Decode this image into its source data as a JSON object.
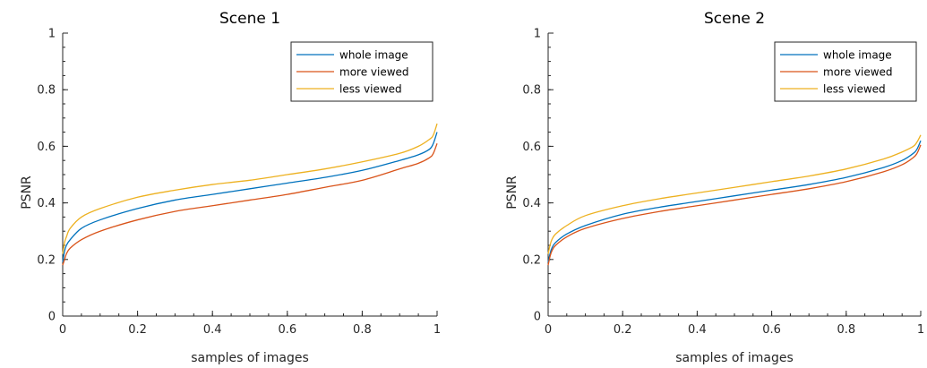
{
  "chart_data": [
    {
      "type": "line",
      "title": "Scene 1",
      "xlabel": "samples of images",
      "ylabel": "PSNR",
      "xlim": [
        0,
        1
      ],
      "ylim": [
        0,
        1
      ],
      "xticks": [
        "0",
        "0.2",
        "0.4",
        "0.6",
        "0.8",
        "1"
      ],
      "yticks": [
        "0",
        "0.2",
        "0.4",
        "0.6",
        "0.8",
        "1"
      ],
      "grid": false,
      "legend_position": "top-right",
      "x": [
        0,
        0.005,
        0.01,
        0.02,
        0.05,
        0.1,
        0.2,
        0.3,
        0.4,
        0.5,
        0.6,
        0.7,
        0.8,
        0.9,
        0.95,
        0.98,
        0.99,
        1.0
      ],
      "series": [
        {
          "name": "whole image",
          "color": "#0072BD",
          "values": [
            0.19,
            0.23,
            0.25,
            0.27,
            0.31,
            0.34,
            0.38,
            0.41,
            0.43,
            0.45,
            0.47,
            0.49,
            0.515,
            0.55,
            0.57,
            0.59,
            0.61,
            0.65
          ]
        },
        {
          "name": "more viewed",
          "color": "#D95319",
          "values": [
            0.18,
            0.2,
            0.22,
            0.24,
            0.27,
            0.3,
            0.34,
            0.37,
            0.39,
            0.41,
            0.43,
            0.455,
            0.48,
            0.52,
            0.54,
            0.56,
            0.575,
            0.61
          ]
        },
        {
          "name": "less viewed",
          "color": "#EDB120",
          "values": [
            0.22,
            0.26,
            0.28,
            0.31,
            0.35,
            0.38,
            0.42,
            0.445,
            0.465,
            0.48,
            0.5,
            0.52,
            0.545,
            0.575,
            0.6,
            0.625,
            0.64,
            0.68
          ]
        }
      ]
    },
    {
      "type": "line",
      "title": "Scene 2",
      "xlabel": "samples of images",
      "ylabel": "PSNR",
      "xlim": [
        0,
        1
      ],
      "ylim": [
        0,
        1
      ],
      "xticks": [
        "0",
        "0.2",
        "0.4",
        "0.6",
        "0.8",
        "1"
      ],
      "yticks": [
        "0",
        "0.2",
        "0.4",
        "0.6",
        "0.8",
        "1"
      ],
      "grid": false,
      "legend_position": "top-right",
      "x": [
        0,
        0.005,
        0.01,
        0.02,
        0.05,
        0.1,
        0.2,
        0.3,
        0.4,
        0.5,
        0.6,
        0.7,
        0.8,
        0.9,
        0.95,
        0.98,
        0.99,
        1.0
      ],
      "series": [
        {
          "name": "whole image",
          "color": "#0072BD",
          "values": [
            0.19,
            0.22,
            0.24,
            0.26,
            0.29,
            0.32,
            0.36,
            0.385,
            0.405,
            0.425,
            0.445,
            0.465,
            0.49,
            0.525,
            0.55,
            0.575,
            0.59,
            0.62
          ]
        },
        {
          "name": "more viewed",
          "color": "#D95319",
          "values": [
            0.18,
            0.21,
            0.23,
            0.25,
            0.28,
            0.31,
            0.345,
            0.37,
            0.39,
            0.41,
            0.43,
            0.45,
            0.475,
            0.51,
            0.535,
            0.56,
            0.575,
            0.605
          ]
        },
        {
          "name": "less viewed",
          "color": "#EDB120",
          "values": [
            0.22,
            0.25,
            0.27,
            0.29,
            0.32,
            0.355,
            0.39,
            0.415,
            0.435,
            0.455,
            0.475,
            0.495,
            0.52,
            0.555,
            0.58,
            0.6,
            0.615,
            0.64
          ]
        }
      ]
    }
  ]
}
